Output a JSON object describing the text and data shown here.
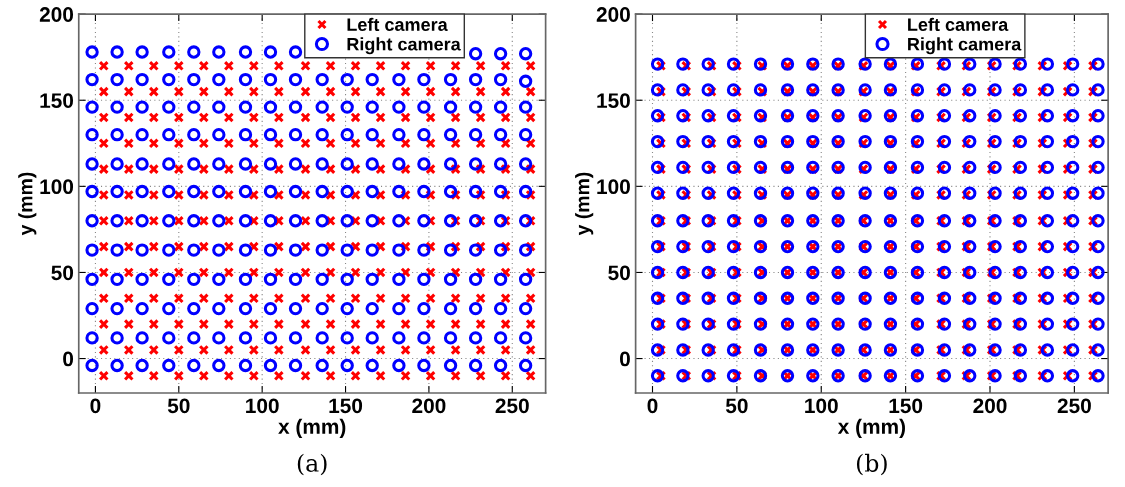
{
  "chart_data": [
    {
      "type": "scatter",
      "xlabel": "x (mm)",
      "ylabel": "y (mm)",
      "xlim": [
        -10,
        270
      ],
      "ylim": [
        -20,
        200
      ],
      "xticks": [
        0,
        50,
        100,
        150,
        200,
        250
      ],
      "yticks": [
        0,
        50,
        100,
        150,
        200
      ],
      "grid": true,
      "legend": "top",
      "annotations": [
        "(a)"
      ],
      "series": [
        {
          "name": "Left camera",
          "color": "#ff0000",
          "marker": "cross",
          "x": [
            5,
            20,
            35,
            50,
            65,
            80,
            95,
            110,
            126,
            141,
            156,
            171,
            186,
            201,
            216,
            231,
            246,
            261,
            5,
            20,
            35,
            50,
            65,
            80,
            95,
            110,
            126,
            141,
            156,
            171,
            186,
            201,
            216,
            231,
            246,
            261,
            5,
            20,
            35,
            50,
            65,
            80,
            95,
            110,
            126,
            141,
            156,
            171,
            186,
            201,
            216,
            231,
            246,
            261,
            5,
            20,
            35,
            50,
            65,
            80,
            95,
            110,
            126,
            141,
            156,
            171,
            186,
            201,
            216,
            231,
            246,
            261,
            5,
            20,
            35,
            50,
            65,
            80,
            95,
            110,
            126,
            141,
            156,
            171,
            186,
            201,
            216,
            231,
            246,
            261,
            5,
            20,
            35,
            50,
            65,
            80,
            95,
            110,
            126,
            141,
            156,
            171,
            186,
            201,
            216,
            231,
            246,
            261,
            5,
            20,
            35,
            50,
            65,
            80,
            95,
            110,
            126,
            141,
            156,
            171,
            186,
            201,
            216,
            231,
            246,
            261,
            5,
            20,
            35,
            50,
            65,
            80,
            95,
            110,
            126,
            141,
            156,
            171,
            186,
            201,
            216,
            231,
            246,
            261,
            5,
            20,
            35,
            50,
            65,
            80,
            95,
            110,
            126,
            141,
            156,
            171,
            186,
            201,
            216,
            231,
            246,
            261,
            5,
            20,
            35,
            50,
            65,
            80,
            95,
            110,
            126,
            141,
            156,
            171,
            186,
            201,
            216,
            231,
            246,
            261,
            5,
            20,
            35,
            50,
            65,
            80,
            95,
            110,
            126,
            141,
            156,
            171,
            186,
            201,
            216,
            231,
            246,
            261,
            5,
            20,
            35,
            50,
            65,
            80,
            95,
            110,
            126,
            141,
            156,
            171,
            186,
            201,
            216,
            231,
            246,
            261,
            5,
            20,
            35,
            50,
            65,
            80,
            95,
            110,
            126,
            141,
            156,
            171,
            186,
            201,
            216,
            231,
            246,
            261
          ],
          "values": [
            170,
            170,
            170,
            170,
            170,
            170,
            170,
            170,
            170,
            170,
            170,
            170,
            170,
            170,
            170,
            170,
            170,
            170,
            155,
            155,
            155,
            155,
            155,
            155,
            155,
            155,
            155,
            155,
            155,
            155,
            155,
            155,
            155,
            155,
            155,
            155,
            140,
            140,
            140,
            140,
            140,
            140,
            140,
            140,
            140,
            140,
            140,
            140,
            140,
            140,
            140,
            140,
            140,
            140,
            125,
            125,
            125,
            125,
            125,
            125,
            125,
            125,
            125,
            125,
            125,
            125,
            125,
            125,
            125,
            125,
            125,
            125,
            110,
            110,
            110,
            110,
            110,
            110,
            110,
            110,
            110,
            110,
            110,
            110,
            110,
            110,
            110,
            110,
            110,
            110,
            95,
            95,
            95,
            95,
            95,
            95,
            95,
            95,
            95,
            95,
            95,
            95,
            95,
            95,
            95,
            95,
            95,
            95,
            80,
            80,
            80,
            80,
            80,
            80,
            80,
            80,
            80,
            80,
            80,
            80,
            80,
            80,
            80,
            80,
            80,
            80,
            65,
            65,
            65,
            65,
            65,
            65,
            65,
            65,
            65,
            65,
            65,
            65,
            65,
            65,
            65,
            65,
            65,
            65,
            50,
            50,
            50,
            50,
            50,
            50,
            50,
            50,
            50,
            50,
            50,
            50,
            50,
            50,
            50,
            50,
            50,
            50,
            35,
            35,
            35,
            35,
            35,
            35,
            35,
            35,
            35,
            35,
            35,
            35,
            35,
            35,
            35,
            35,
            35,
            35,
            20,
            20,
            20,
            20,
            20,
            20,
            20,
            20,
            20,
            20,
            20,
            20,
            20,
            20,
            20,
            20,
            20,
            20,
            5,
            5,
            5,
            5,
            5,
            5,
            5,
            5,
            5,
            5,
            5,
            5,
            5,
            5,
            5,
            5,
            5,
            5,
            -10,
            -10,
            -10,
            -10,
            -10,
            -10,
            -10,
            -10,
            -10,
            -10,
            -10,
            -10,
            -10,
            -10,
            -10,
            -10,
            -10,
            -10
          ]
        },
        {
          "name": "Right camera",
          "color": "#0000ff",
          "marker": "circle",
          "x": [
            -2,
            13,
            28,
            44,
            59,
            74,
            90,
            105,
            120,
            136,
            151,
            166,
            182,
            197,
            213,
            228,
            243,
            258,
            -2,
            13,
            28,
            44,
            59,
            74,
            90,
            105,
            120,
            136,
            151,
            166,
            182,
            197,
            213,
            228,
            243,
            258,
            -2,
            13,
            28,
            44,
            59,
            74,
            90,
            105,
            120,
            136,
            151,
            166,
            182,
            197,
            213,
            228,
            243,
            258,
            -2,
            13,
            28,
            44,
            59,
            74,
            90,
            105,
            120,
            136,
            151,
            166,
            182,
            197,
            213,
            228,
            243,
            258,
            -2,
            13,
            28,
            44,
            59,
            74,
            90,
            105,
            120,
            136,
            151,
            166,
            182,
            197,
            213,
            228,
            243,
            258,
            -2,
            13,
            28,
            44,
            59,
            74,
            90,
            105,
            120,
            136,
            151,
            166,
            182,
            197,
            213,
            228,
            243,
            258,
            -2,
            13,
            28,
            44,
            59,
            74,
            90,
            105,
            120,
            136,
            151,
            166,
            182,
            197,
            213,
            228,
            243,
            258,
            -2,
            13,
            28,
            44,
            59,
            74,
            90,
            105,
            120,
            136,
            151,
            166,
            182,
            197,
            213,
            228,
            243,
            258,
            -2,
            13,
            28,
            44,
            59,
            74,
            90,
            105,
            120,
            136,
            151,
            166,
            182,
            197,
            213,
            228,
            243,
            258,
            -2,
            13,
            28,
            44,
            59,
            74,
            90,
            105,
            120,
            136,
            151,
            166,
            182,
            197,
            213,
            228,
            243,
            258,
            -2,
            13,
            28,
            44,
            59,
            74,
            90,
            105,
            120,
            136,
            151,
            166,
            182,
            197,
            213,
            228,
            243,
            258,
            -2,
            13,
            28,
            44,
            59,
            74,
            90,
            105,
            120,
            136,
            151,
            166,
            182,
            197,
            213,
            228,
            243,
            258
          ],
          "values": [
            178,
            178,
            178,
            178,
            178,
            178,
            178,
            178,
            178,
            null,
            null,
            null,
            null,
            null,
            null,
            177,
            177,
            177,
            162,
            162,
            162,
            162,
            162,
            162,
            162,
            162,
            162,
            162,
            162,
            162,
            162,
            162,
            162,
            162,
            162,
            161,
            146,
            146,
            146,
            146,
            146,
            146,
            146,
            146,
            146,
            146,
            146,
            146,
            146,
            146,
            146,
            146,
            146,
            146,
            130,
            130,
            130,
            130,
            130,
            130,
            130,
            130,
            130,
            130,
            130,
            130,
            130,
            130,
            130,
            130,
            130,
            130,
            113,
            113,
            113,
            113,
            113,
            113,
            113,
            113,
            113,
            113,
            113,
            113,
            113,
            113,
            113,
            113,
            113,
            113,
            97,
            97,
            97,
            97,
            97,
            97,
            97,
            97,
            97,
            97,
            97,
            97,
            97,
            97,
            97,
            97,
            97,
            97,
            80,
            80,
            80,
            80,
            80,
            80,
            80,
            80,
            80,
            80,
            80,
            80,
            80,
            80,
            80,
            80,
            80,
            80,
            63,
            63,
            63,
            63,
            63,
            63,
            63,
            63,
            63,
            63,
            63,
            63,
            63,
            63,
            63,
            63,
            63,
            63,
            46,
            46,
            46,
            46,
            46,
            46,
            46,
            46,
            46,
            46,
            46,
            46,
            46,
            46,
            46,
            46,
            46,
            46,
            29,
            29,
            29,
            29,
            29,
            29,
            29,
            29,
            29,
            29,
            29,
            29,
            29,
            29,
            29,
            29,
            29,
            29,
            12,
            12,
            12,
            12,
            12,
            12,
            12,
            12,
            12,
            12,
            12,
            12,
            12,
            12,
            12,
            12,
            12,
            12,
            -4,
            -4,
            -4,
            -4,
            -4,
            -4,
            -4,
            -4,
            -4,
            -4,
            -4,
            -4,
            -4,
            -4,
            -4,
            -4,
            -4,
            -4
          ]
        }
      ]
    },
    {
      "type": "scatter",
      "xlabel": "x (mm)",
      "ylabel": "y (mm)",
      "xlim": [
        -10,
        270
      ],
      "ylim": [
        -20,
        200
      ],
      "xticks": [
        0,
        50,
        100,
        150,
        200,
        250
      ],
      "yticks": [
        0,
        50,
        100,
        150,
        200
      ],
      "grid": true,
      "legend": "top",
      "annotations": [
        "(b)"
      ],
      "series": [
        {
          "name": "Left camera",
          "color": "#ff0000",
          "marker": "cross",
          "x": [
            5,
            20,
            35,
            50,
            65,
            80,
            95,
            110,
            125,
            141,
            156,
            171,
            186,
            201,
            216,
            231,
            246,
            261,
            5,
            20,
            35,
            50,
            65,
            80,
            95,
            110,
            125,
            141,
            156,
            171,
            186,
            201,
            216,
            231,
            246,
            261,
            5,
            20,
            35,
            50,
            65,
            80,
            95,
            110,
            125,
            141,
            156,
            171,
            186,
            201,
            216,
            231,
            246,
            261,
            5,
            20,
            35,
            50,
            65,
            80,
            95,
            110,
            125,
            141,
            156,
            171,
            186,
            201,
            216,
            231,
            246,
            261,
            5,
            20,
            35,
            50,
            65,
            80,
            95,
            110,
            125,
            141,
            156,
            171,
            186,
            201,
            216,
            231,
            246,
            261,
            5,
            20,
            35,
            50,
            65,
            80,
            95,
            110,
            125,
            141,
            156,
            171,
            186,
            201,
            216,
            231,
            246,
            261,
            5,
            20,
            35,
            50,
            65,
            80,
            95,
            110,
            125,
            141,
            156,
            171,
            186,
            201,
            216,
            231,
            246,
            261,
            5,
            20,
            35,
            50,
            65,
            80,
            95,
            110,
            125,
            141,
            156,
            171,
            186,
            201,
            216,
            231,
            246,
            261,
            5,
            20,
            35,
            50,
            65,
            80,
            95,
            110,
            125,
            141,
            156,
            171,
            186,
            201,
            216,
            231,
            246,
            261,
            5,
            20,
            35,
            50,
            65,
            80,
            95,
            110,
            125,
            141,
            156,
            171,
            186,
            201,
            216,
            231,
            246,
            261,
            5,
            20,
            35,
            50,
            65,
            80,
            95,
            110,
            125,
            141,
            156,
            171,
            186,
            201,
            216,
            231,
            246,
            261,
            5,
            20,
            35,
            50,
            65,
            80,
            95,
            110,
            125,
            141,
            156,
            171,
            186,
            201,
            216,
            231,
            246,
            261,
            5,
            20,
            35,
            50,
            65,
            80,
            95,
            110,
            125,
            141,
            156,
            171,
            186,
            201,
            216,
            231,
            246,
            261
          ],
          "values": [
            170,
            170,
            170,
            170,
            170,
            170,
            170,
            170,
            170,
            170,
            170,
            170,
            170,
            170,
            170,
            170,
            170,
            170,
            155,
            155,
            155,
            155,
            155,
            155,
            155,
            155,
            155,
            155,
            155,
            155,
            155,
            155,
            155,
            155,
            155,
            155,
            140,
            140,
            140,
            140,
            140,
            140,
            140,
            140,
            140,
            140,
            140,
            140,
            140,
            140,
            140,
            140,
            140,
            140,
            125,
            125,
            125,
            125,
            125,
            125,
            125,
            125,
            125,
            125,
            125,
            125,
            125,
            125,
            125,
            125,
            125,
            125,
            110,
            110,
            110,
            110,
            110,
            110,
            110,
            110,
            110,
            110,
            110,
            110,
            110,
            110,
            110,
            110,
            110,
            110,
            95,
            95,
            95,
            95,
            95,
            95,
            95,
            95,
            95,
            95,
            95,
            95,
            95,
            95,
            95,
            95,
            95,
            95,
            80,
            80,
            80,
            80,
            80,
            80,
            80,
            80,
            80,
            80,
            80,
            80,
            80,
            80,
            80,
            80,
            80,
            80,
            65,
            65,
            65,
            65,
            65,
            65,
            65,
            65,
            65,
            65,
            65,
            65,
            65,
            65,
            65,
            65,
            65,
            65,
            50,
            50,
            50,
            50,
            50,
            50,
            50,
            50,
            50,
            50,
            50,
            50,
            50,
            50,
            50,
            50,
            50,
            50,
            35,
            35,
            35,
            35,
            35,
            35,
            35,
            35,
            35,
            35,
            35,
            35,
            35,
            35,
            35,
            35,
            35,
            35,
            20,
            20,
            20,
            20,
            20,
            20,
            20,
            20,
            20,
            20,
            20,
            20,
            20,
            20,
            20,
            20,
            20,
            20,
            5,
            5,
            5,
            5,
            5,
            5,
            5,
            5,
            5,
            5,
            5,
            5,
            5,
            5,
            5,
            5,
            5,
            5,
            -10,
            -10,
            -10,
            -10,
            -10,
            -10,
            -10,
            -10,
            -10,
            -10,
            -10,
            -10,
            -10,
            -10,
            -10,
            -10,
            -10,
            -10
          ]
        },
        {
          "name": "Right camera",
          "color": "#0000ff",
          "marker": "circle",
          "x": [
            3,
            18,
            33,
            48,
            64,
            80,
            95,
            110,
            126,
            141,
            157,
            173,
            188,
            203,
            218,
            234,
            249,
            264,
            3,
            18,
            33,
            48,
            64,
            80,
            95,
            110,
            126,
            141,
            157,
            173,
            188,
            203,
            218,
            234,
            249,
            264,
            3,
            18,
            33,
            48,
            64,
            80,
            95,
            110,
            126,
            141,
            157,
            173,
            188,
            203,
            218,
            234,
            249,
            264,
            3,
            18,
            33,
            48,
            64,
            80,
            95,
            110,
            126,
            141,
            157,
            173,
            188,
            203,
            218,
            234,
            249,
            264,
            3,
            18,
            33,
            48,
            64,
            80,
            95,
            110,
            126,
            141,
            157,
            173,
            188,
            203,
            218,
            234,
            249,
            264,
            3,
            18,
            33,
            48,
            64,
            80,
            95,
            110,
            126,
            141,
            157,
            173,
            188,
            203,
            218,
            234,
            249,
            264,
            3,
            18,
            33,
            48,
            64,
            80,
            95,
            110,
            126,
            141,
            157,
            173,
            188,
            203,
            218,
            234,
            249,
            264,
            3,
            18,
            33,
            48,
            64,
            80,
            95,
            110,
            126,
            141,
            157,
            173,
            188,
            203,
            218,
            234,
            249,
            264,
            3,
            18,
            33,
            48,
            64,
            80,
            95,
            110,
            126,
            141,
            157,
            173,
            188,
            203,
            218,
            234,
            249,
            264,
            3,
            18,
            33,
            48,
            64,
            80,
            95,
            110,
            126,
            141,
            157,
            173,
            188,
            203,
            218,
            234,
            249,
            264,
            3,
            18,
            33,
            48,
            64,
            80,
            95,
            110,
            126,
            141,
            157,
            173,
            188,
            203,
            218,
            234,
            249,
            264,
            3,
            18,
            33,
            48,
            64,
            80,
            95,
            110,
            126,
            141,
            157,
            173,
            188,
            203,
            218,
            234,
            249,
            264,
            3,
            18,
            33,
            48,
            64,
            80,
            95,
            110,
            126,
            141,
            157,
            173,
            188,
            203,
            218,
            234,
            249,
            264
          ],
          "values": [
            171,
            171,
            171,
            171,
            171,
            171,
            171,
            171,
            171,
            171,
            171,
            171,
            171,
            171,
            171,
            171,
            171,
            171,
            156,
            156,
            156,
            156,
            156,
            156,
            156,
            156,
            156,
            156,
            156,
            156,
            156,
            156,
            156,
            156,
            156,
            156,
            141,
            141,
            141,
            141,
            141,
            141,
            141,
            141,
            141,
            141,
            141,
            141,
            141,
            141,
            141,
            141,
            141,
            141,
            126,
            126,
            126,
            126,
            126,
            126,
            126,
            126,
            126,
            126,
            126,
            126,
            126,
            126,
            126,
            126,
            126,
            126,
            111,
            111,
            111,
            111,
            111,
            111,
            111,
            111,
            111,
            111,
            111,
            111,
            111,
            111,
            111,
            111,
            111,
            111,
            96,
            96,
            96,
            96,
            96,
            96,
            96,
            96,
            96,
            96,
            96,
            96,
            96,
            96,
            96,
            96,
            96,
            96,
            80,
            80,
            80,
            80,
            80,
            80,
            80,
            80,
            80,
            80,
            80,
            80,
            80,
            80,
            80,
            80,
            80,
            80,
            65,
            65,
            65,
            65,
            65,
            65,
            65,
            65,
            65,
            65,
            65,
            65,
            65,
            65,
            65,
            65,
            65,
            65,
            50,
            50,
            50,
            50,
            50,
            50,
            50,
            50,
            50,
            50,
            50,
            50,
            50,
            50,
            50,
            50,
            50,
            50,
            35,
            35,
            35,
            35,
            35,
            35,
            35,
            35,
            35,
            35,
            35,
            35,
            35,
            35,
            35,
            35,
            35,
            35,
            20,
            20,
            20,
            20,
            20,
            20,
            20,
            20,
            20,
            20,
            20,
            20,
            20,
            20,
            20,
            20,
            20,
            20,
            5,
            5,
            5,
            5,
            5,
            5,
            5,
            5,
            5,
            5,
            5,
            5,
            5,
            5,
            5,
            5,
            5,
            5,
            -10,
            -10,
            -10,
            -10,
            -10,
            -10,
            -10,
            -10,
            -10,
            -10,
            -10,
            -10,
            -10,
            -10,
            -10,
            -10,
            -10,
            -10
          ]
        }
      ]
    }
  ]
}
